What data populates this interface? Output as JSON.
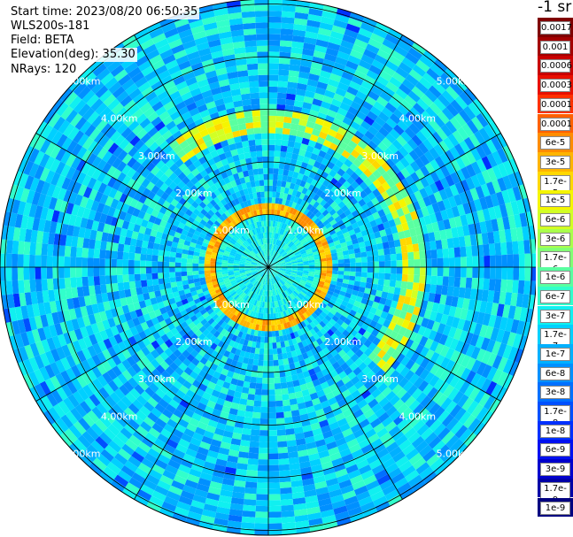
{
  "info": {
    "start_time": "Start time: 2023/08/20 06:50:35",
    "instrument": "WLS200s-181",
    "field": "Field: BETA",
    "elevation": "Elevation(deg): 35.30",
    "nrays": "NRays: 120"
  },
  "colorbar": {
    "unit": "-1 sr",
    "labels": [
      "0.0017",
      "0.001",
      "0.0006",
      "0.0003",
      "0.00017",
      "0.0001",
      "6e-5",
      "3e-5",
      "1.7e-5",
      "1e-5",
      "6e-6",
      "3e-6",
      "1.7e-6",
      "1e-6",
      "6e-7",
      "3e-7",
      "1.7e-7",
      "1e-7",
      "6e-8",
      "3e-8",
      "1.7e-8",
      "1e-8",
      "6e-9",
      "3e-9",
      "1.7e-9",
      "1e-9"
    ],
    "colors": [
      "#7f0000",
      "#a30000",
      "#c80000",
      "#e81000",
      "#ff3000",
      "#ff6000",
      "#ff8c00",
      "#ffb400",
      "#ffd800",
      "#f5f500",
      "#d2ff25",
      "#aaff4c",
      "#82ff74",
      "#5affa0",
      "#32ffcb",
      "#10f0f0",
      "#00d0ff",
      "#00b0ff",
      "#0090ff",
      "#0070ff",
      "#0050ff",
      "#0030ff",
      "#0010f0",
      "#0000cc",
      "#0000a6",
      "#000080"
    ]
  },
  "chart_data": {
    "type": "heatmap",
    "projection": "polar (PPI scan)",
    "field": "BETA",
    "rays": 120,
    "range_rings_km": [
      1.0,
      2.0,
      3.0,
      4.0,
      5.0
    ],
    "ring_labels": [
      "1.00km",
      "2.00km",
      "3.00km",
      "4.00km",
      "5.00km"
    ],
    "colorscale": "log",
    "value_range": [
      1e-09,
      0.0017
    ],
    "background_level": "3e-7",
    "features": [
      {
        "name": "bright ring",
        "range_km": [
          1.0,
          1.2
        ],
        "value": "1.7e-5 to 6e-5"
      },
      {
        "name": "partial arc",
        "range_km": [
          2.6,
          2.9
        ],
        "value": "1e-5 to 3e-5"
      },
      {
        "name": "inner region",
        "range_km": [
          0,
          1.0
        ],
        "value": "1.7e-7 to 1e-7"
      },
      {
        "name": "outer region",
        "range_km": [
          1.2,
          5.5
        ],
        "value": "1.7e-7 to 3e-7"
      }
    ]
  }
}
